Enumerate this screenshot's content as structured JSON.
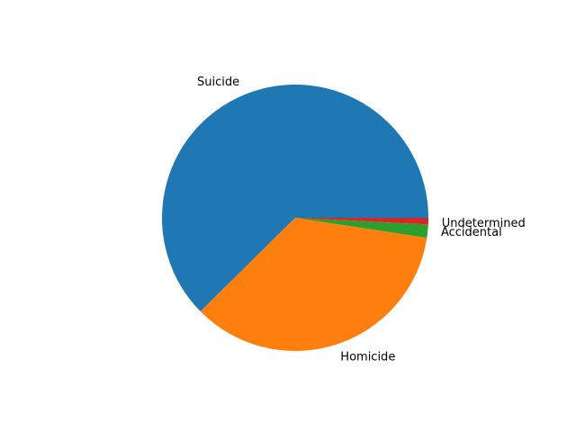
{
  "chart_data": {
    "type": "pie",
    "title": "",
    "labels": [
      "Suicide",
      "Homicide",
      "Accidental",
      "Undetermined"
    ],
    "values": [
      62.4,
      35.2,
      1.6,
      0.8
    ],
    "colors": [
      "#1f77b4",
      "#ff7f0e",
      "#2ca02c",
      "#d62728"
    ],
    "start_angle_deg": 0,
    "direction": "counterclockwise",
    "legend": "none"
  }
}
